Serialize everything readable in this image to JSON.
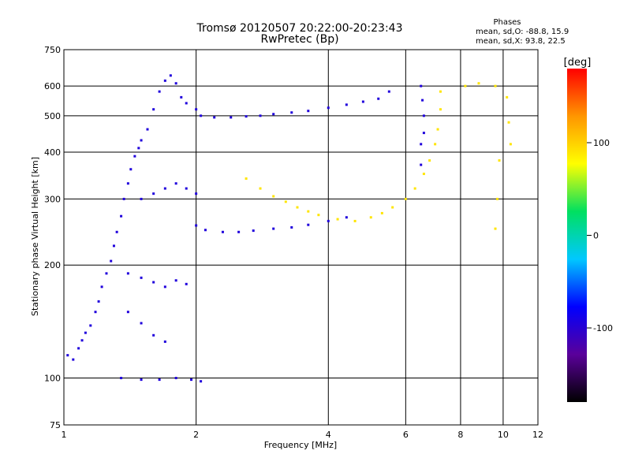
{
  "chart_data": {
    "type": "scatter",
    "title": "Tromsø 20120507 20:22:00-20:23:43",
    "subtitle": "RwPretec (Bp)",
    "xlabel": "Frequency [MHz]",
    "ylabel": "Stationary phase Virtual Height [km]",
    "x_scale": "log",
    "y_scale": "log",
    "xlim": [
      1,
      12
    ],
    "ylim": [
      75,
      750
    ],
    "x_ticks": [
      1,
      2,
      4,
      6,
      8,
      10,
      12
    ],
    "y_ticks": [
      75,
      100,
      200,
      300,
      400,
      500,
      600,
      750
    ],
    "grid": true,
    "phase_info": {
      "title": "Phases",
      "line_o": "mean, sd,O: -88.8, 15.9",
      "line_x": "mean, sd,X:  93.8, 22.5"
    },
    "colorbar": {
      "label": "[deg]",
      "range": [
        -180,
        180
      ],
      "ticks": [
        100,
        0,
        -100
      ],
      "colors": [
        "#000000",
        "#5a009a",
        "#0000ff",
        "#00c8ff",
        "#00e060",
        "#ffff00",
        "#ff9600",
        "#ff0000"
      ]
    },
    "series": [
      {
        "color_phase": -95,
        "points": [
          [
            1.02,
            115
          ],
          [
            1.05,
            112
          ],
          [
            1.08,
            120
          ],
          [
            1.1,
            126
          ],
          [
            1.12,
            132
          ],
          [
            1.15,
            138
          ],
          [
            1.18,
            150
          ],
          [
            1.2,
            160
          ],
          [
            1.22,
            175
          ],
          [
            1.25,
            190
          ],
          [
            1.28,
            205
          ],
          [
            1.3,
            225
          ],
          [
            1.32,
            245
          ],
          [
            1.35,
            270
          ],
          [
            1.37,
            300
          ],
          [
            1.4,
            330
          ],
          [
            1.42,
            360
          ],
          [
            1.45,
            390
          ],
          [
            1.48,
            410
          ],
          [
            1.5,
            430
          ],
          [
            1.55,
            460
          ],
          [
            1.6,
            520
          ],
          [
            1.65,
            580
          ],
          [
            1.7,
            620
          ],
          [
            1.75,
            640
          ],
          [
            1.8,
            610
          ],
          [
            1.85,
            560
          ],
          [
            1.9,
            540
          ],
          [
            2.0,
            520
          ],
          [
            2.05,
            500
          ],
          [
            2.2,
            495
          ],
          [
            2.4,
            495
          ],
          [
            2.6,
            498
          ],
          [
            2.8,
            500
          ],
          [
            3.0,
            505
          ],
          [
            3.3,
            510
          ],
          [
            3.6,
            515
          ],
          [
            4.0,
            525
          ],
          [
            4.4,
            535
          ],
          [
            4.8,
            545
          ],
          [
            5.2,
            555
          ],
          [
            5.5,
            580
          ],
          [
            2.0,
            255
          ],
          [
            2.1,
            248
          ],
          [
            2.3,
            245
          ],
          [
            2.5,
            245
          ],
          [
            2.7,
            247
          ],
          [
            3.0,
            250
          ],
          [
            3.3,
            252
          ],
          [
            3.6,
            256
          ],
          [
            4.0,
            262
          ],
          [
            4.4,
            268
          ],
          [
            1.4,
            150
          ],
          [
            1.5,
            140
          ],
          [
            1.6,
            130
          ],
          [
            1.7,
            125
          ],
          [
            1.4,
            190
          ],
          [
            1.5,
            185
          ],
          [
            1.6,
            180
          ],
          [
            1.7,
            175
          ],
          [
            1.8,
            182
          ],
          [
            1.9,
            178
          ],
          [
            1.35,
            100
          ],
          [
            1.5,
            99
          ],
          [
            1.65,
            99
          ],
          [
            1.8,
            100
          ],
          [
            1.95,
            99
          ],
          [
            2.05,
            98
          ],
          [
            6.5,
            600
          ],
          [
            6.55,
            550
          ],
          [
            6.6,
            500
          ],
          [
            6.6,
            450
          ],
          [
            6.5,
            420
          ],
          [
            6.5,
            370
          ],
          [
            1.5,
            300
          ],
          [
            1.6,
            310
          ],
          [
            1.7,
            320
          ],
          [
            1.8,
            330
          ],
          [
            1.9,
            320
          ],
          [
            2.0,
            310
          ]
        ]
      },
      {
        "color_phase": 90,
        "points": [
          [
            2.6,
            340
          ],
          [
            2.8,
            320
          ],
          [
            3.0,
            305
          ],
          [
            3.2,
            295
          ],
          [
            3.4,
            285
          ],
          [
            3.6,
            278
          ],
          [
            3.8,
            272
          ],
          [
            4.2,
            265
          ],
          [
            4.6,
            262
          ],
          [
            5.0,
            268
          ],
          [
            5.3,
            275
          ],
          [
            5.6,
            285
          ],
          [
            6.0,
            300
          ],
          [
            6.3,
            320
          ],
          [
            6.6,
            350
          ],
          [
            6.8,
            380
          ],
          [
            7.0,
            420
          ],
          [
            7.1,
            460
          ],
          [
            7.2,
            520
          ],
          [
            7.2,
            580
          ],
          [
            8.2,
            600
          ],
          [
            8.8,
            610
          ],
          [
            9.6,
            600
          ],
          [
            10.2,
            560
          ],
          [
            10.3,
            480
          ],
          [
            10.4,
            420
          ],
          [
            9.8,
            380
          ],
          [
            9.7,
            300
          ],
          [
            9.6,
            250
          ]
        ]
      }
    ]
  }
}
